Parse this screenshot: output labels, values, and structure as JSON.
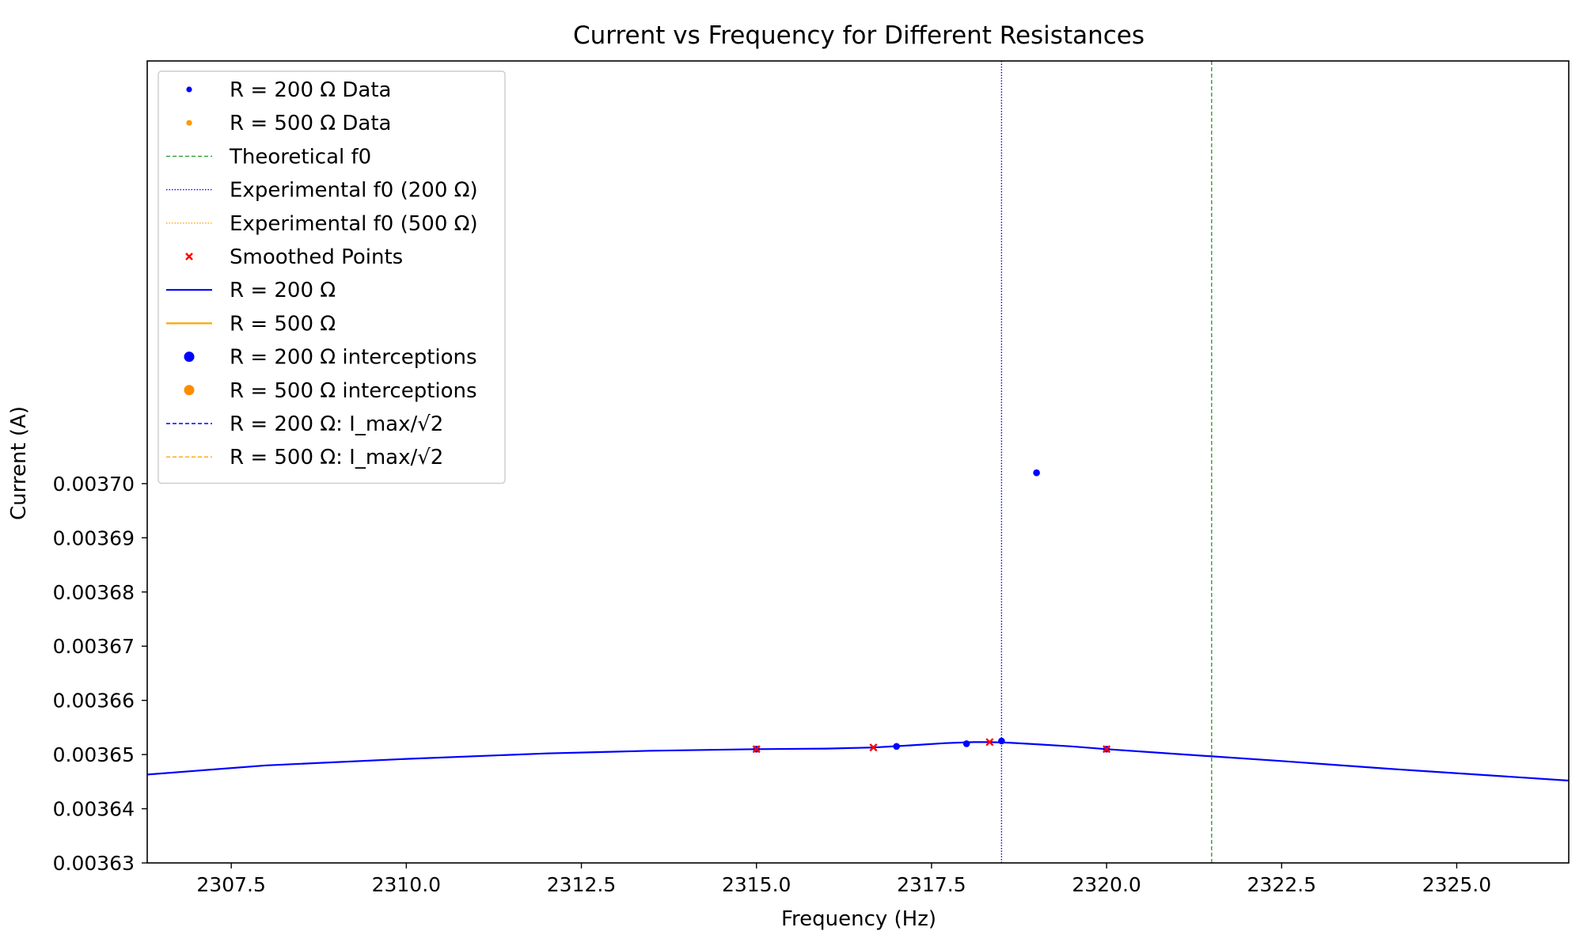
{
  "chart_data": {
    "type": "line",
    "title": "Current vs Frequency for Different Resistances",
    "xlabel": "Frequency (Hz)",
    "ylabel": "Current (A)",
    "xlim": [
      2306.3,
      2326.6
    ],
    "ylim": [
      0.00363,
      0.003778
    ],
    "x_ticks": [
      2307.5,
      2310.0,
      2312.5,
      2315.0,
      2317.5,
      2320.0,
      2322.5,
      2325.0
    ],
    "x_tick_labels": [
      "2307.5",
      "2310.0",
      "2312.5",
      "2315.0",
      "2317.5",
      "2320.0",
      "2322.5",
      "2325.0"
    ],
    "y_ticks": [
      0.00363,
      0.00364,
      0.00365,
      0.00366,
      0.00367,
      0.00368,
      0.00369,
      0.0037
    ],
    "y_tick_labels": [
      "0.00363",
      "0.00364",
      "0.00365",
      "0.00366",
      "0.00367",
      "0.00368",
      "0.00369",
      "0.00370"
    ],
    "grid": false,
    "legend_position": "top-left",
    "legend": [
      {
        "label": "R = 200 Ω Data",
        "kind": "dot-small",
        "color": "#0000ff"
      },
      {
        "label": "R = 500 Ω Data",
        "kind": "dot-small",
        "color": "#ff9900"
      },
      {
        "label": "Theoretical f0",
        "kind": "dashed",
        "color": "#2ca02c"
      },
      {
        "label": "Experimental f0 (200 Ω)",
        "kind": "dotted",
        "color": "#0000ff"
      },
      {
        "label": "Experimental f0 (500 Ω)",
        "kind": "dotted",
        "color": "#ffa500"
      },
      {
        "label": "Smoothed Points",
        "kind": "x",
        "color": "#ff0000"
      },
      {
        "label": "R = 200 Ω",
        "kind": "line",
        "color": "#0000ff"
      },
      {
        "label": "R = 500 Ω",
        "kind": "line",
        "color": "#ffa500"
      },
      {
        "label": "R = 200 Ω interceptions",
        "kind": "dot-large",
        "color": "#0000ff"
      },
      {
        "label": "R = 500 Ω interceptions",
        "kind": "dot-large",
        "color": "#ff8c00"
      },
      {
        "label": "R = 200 Ω: I_max/√2",
        "kind": "dashed",
        "color": "#0000ff"
      },
      {
        "label": "R = 500 Ω: I_max/√2",
        "kind": "dashed",
        "color": "#ffa500"
      }
    ],
    "series": [
      {
        "name": "R = 200 Ω Data",
        "type": "scatter",
        "color": "#0000ff",
        "x": [
          2315.0,
          2317.0,
          2318.0,
          2318.5,
          2319.0,
          2320.0
        ],
        "y": [
          0.003651,
          0.0036515,
          0.003652,
          0.0036525,
          0.003702,
          0.003651
        ]
      },
      {
        "name": "Smoothed Points",
        "type": "scatter",
        "color": "#ff0000",
        "x": [
          2315.0,
          2316.67,
          2318.33,
          2320.0
        ],
        "y": [
          0.003651,
          0.0036513,
          0.0036523,
          0.003651
        ]
      },
      {
        "name": "R = 200 Ω",
        "type": "line",
        "color": "#0000ff",
        "x": [
          2306.3,
          2308.0,
          2310.0,
          2312.0,
          2313.5,
          2315.0,
          2316.0,
          2316.67,
          2317.2,
          2317.7,
          2318.1,
          2318.33,
          2318.6,
          2319.0,
          2319.5,
          2320.0,
          2321.0,
          2322.5,
          2324.0,
          2326.6
        ],
        "y": [
          0.0036463,
          0.003648,
          0.0036492,
          0.0036502,
          0.0036507,
          0.003651,
          0.0036511,
          0.0036513,
          0.0036517,
          0.0036521,
          0.0036523,
          0.0036523,
          0.0036522,
          0.0036519,
          0.0036515,
          0.003651,
          0.0036501,
          0.0036488,
          0.0036474,
          0.0036452
        ]
      }
    ],
    "vlines": [
      {
        "name": "Theoretical f0",
        "x": 2321.5,
        "color": "#2ca02c",
        "style": "dashed"
      },
      {
        "name": "Experimental f0 (200 Ω)",
        "x": 2318.5,
        "color": "#0000ff",
        "style": "dotted"
      }
    ]
  }
}
